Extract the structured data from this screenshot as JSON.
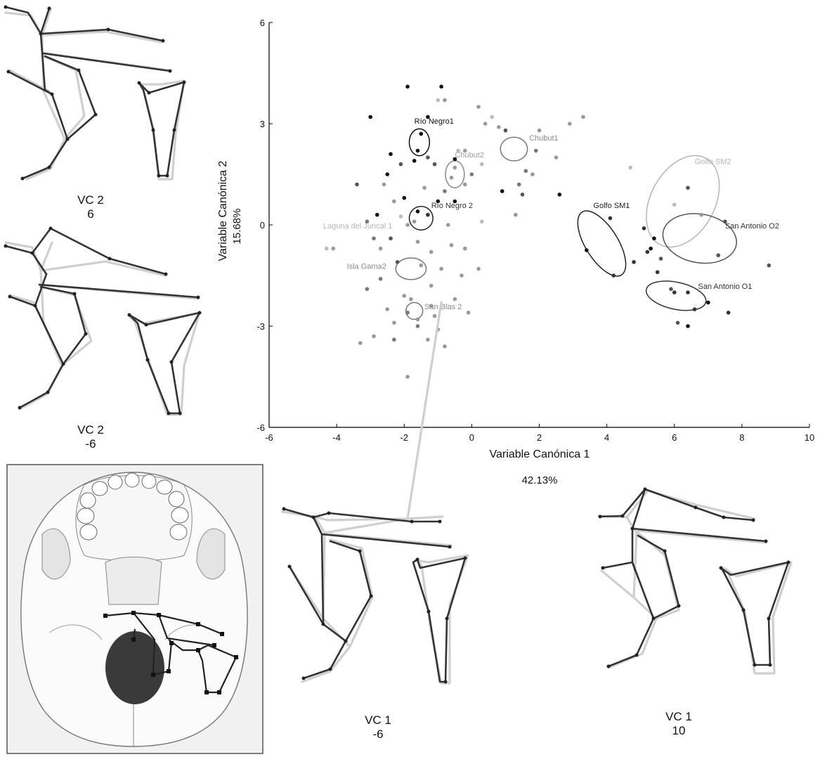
{
  "chart_data": {
    "type": "scatter",
    "xlabel": "Variable Canónica 1",
    "xlabel_pct": "42.13%",
    "ylabel": "Variable Canónica 2",
    "ylabel_pct": "15.68%",
    "xlim": [
      -6,
      10
    ],
    "ylim": [
      -6,
      6
    ],
    "xticks": [
      "-6",
      "-4",
      "-2",
      "0",
      "2",
      "4",
      "6",
      "8",
      "10"
    ],
    "yticks": [
      "6",
      "3",
      "0",
      "-3",
      "-6"
    ],
    "group_labels": [
      {
        "name": "Río Negro1",
        "x": -1.7,
        "y": 3.0,
        "color": "#111111"
      },
      {
        "name": "Chubut2",
        "x": -0.5,
        "y": 2.0,
        "color": "#a0a0a0"
      },
      {
        "name": "Chubut1",
        "x": 1.7,
        "y": 2.5,
        "color": "#8a8a8a"
      },
      {
        "name": "Golfo SM2",
        "x": 6.6,
        "y": 1.8,
        "color": "#b5b5b5"
      },
      {
        "name": "Río Negro 2",
        "x": -1.2,
        "y": 0.5,
        "color": "#333333"
      },
      {
        "name": "Golfo SM1",
        "x": 3.6,
        "y": 0.5,
        "color": "#222222"
      },
      {
        "name": "San Antonio O2",
        "x": 7.5,
        "y": -0.1,
        "color": "#333333"
      },
      {
        "name": "Laguna del Juncal 1",
        "x": -4.4,
        "y": -0.1,
        "color": "#b5b5b5"
      },
      {
        "name": "Isla Gama2",
        "x": -3.7,
        "y": -1.3,
        "color": "#8a8a8a"
      },
      {
        "name": "San Antonio O1",
        "x": 6.7,
        "y": -1.9,
        "color": "#333333"
      },
      {
        "name": "San Blas 2",
        "x": -1.4,
        "y": -2.5,
        "color": "#8a8a8a"
      }
    ],
    "ellipses": [
      {
        "cx": -1.55,
        "cy": 2.45,
        "rx": 0.3,
        "ry": 0.4,
        "rot": 0,
        "color": "#111111"
      },
      {
        "cx": -0.5,
        "cy": 1.5,
        "rx": 0.28,
        "ry": 0.4,
        "rot": 0,
        "color": "#8a8a8a"
      },
      {
        "cx": 1.25,
        "cy": 2.25,
        "rx": 0.4,
        "ry": 0.35,
        "rot": 0,
        "color": "#777777"
      },
      {
        "cx": -1.5,
        "cy": 0.2,
        "rx": 0.35,
        "ry": 0.35,
        "rot": 0,
        "color": "#222222"
      },
      {
        "cx": -1.8,
        "cy": -1.3,
        "rx": 0.45,
        "ry": 0.32,
        "rot": 0,
        "color": "#777777"
      },
      {
        "cx": -1.7,
        "cy": -2.55,
        "rx": 0.25,
        "ry": 0.25,
        "rot": 0,
        "color": "#777777"
      },
      {
        "cx": 3.85,
        "cy": -0.55,
        "rx": 0.48,
        "ry": 1.1,
        "rot": -32,
        "color": "#222222"
      },
      {
        "cx": 6.25,
        "cy": 0.7,
        "rx": 0.95,
        "ry": 1.45,
        "rot": 28,
        "color": "#b5b5b5"
      },
      {
        "cx": 6.75,
        "cy": -0.4,
        "rx": 1.1,
        "ry": 0.72,
        "rot": 10,
        "color": "#555555"
      },
      {
        "cx": 6.05,
        "cy": -2.1,
        "rx": 0.9,
        "ry": 0.4,
        "rot": 12,
        "color": "#333333"
      }
    ],
    "points": [
      {
        "x": -1.9,
        "y": 4.1,
        "c": "#111111"
      },
      {
        "x": -0.9,
        "y": 4.1,
        "c": "#111111"
      },
      {
        "x": -1.0,
        "y": 3.7,
        "c": "#bbbbbb"
      },
      {
        "x": -0.8,
        "y": 3.7,
        "c": "#999999"
      },
      {
        "x": -3.0,
        "y": 3.2,
        "c": "#111111"
      },
      {
        "x": -1.3,
        "y": 3.2,
        "c": "#111111"
      },
      {
        "x": -1.5,
        "y": 2.7,
        "c": "#111111"
      },
      {
        "x": -1.6,
        "y": 2.2,
        "c": "#111111"
      },
      {
        "x": -1.3,
        "y": 2.0,
        "c": "#555555"
      },
      {
        "x": -1.7,
        "y": 1.9,
        "c": "#111111"
      },
      {
        "x": -2.4,
        "y": 2.1,
        "c": "#111111"
      },
      {
        "x": -2.5,
        "y": 1.5,
        "c": "#111111"
      },
      {
        "x": -2.1,
        "y": 1.8,
        "c": "#555555"
      },
      {
        "x": -1.1,
        "y": 1.8,
        "c": "#555555"
      },
      {
        "x": -0.5,
        "y": 1.95,
        "c": "#111111"
      },
      {
        "x": -0.5,
        "y": 1.7,
        "c": "#999999"
      },
      {
        "x": -0.6,
        "y": 1.4,
        "c": "#999999"
      },
      {
        "x": -0.4,
        "y": 2.2,
        "c": "#bbbbbb"
      },
      {
        "x": -0.2,
        "y": 2.2,
        "c": "#999999"
      },
      {
        "x": 0.0,
        "y": 1.5,
        "c": "#777777"
      },
      {
        "x": -0.2,
        "y": 1.2,
        "c": "#999999"
      },
      {
        "x": 0.3,
        "y": 1.8,
        "c": "#bbbbbb"
      },
      {
        "x": 0.4,
        "y": 3.0,
        "c": "#999999"
      },
      {
        "x": 0.2,
        "y": 3.5,
        "c": "#999999"
      },
      {
        "x": 0.6,
        "y": 3.2,
        "c": "#bbbbbb"
      },
      {
        "x": 0.8,
        "y": 2.9,
        "c": "#999999"
      },
      {
        "x": 1.0,
        "y": 2.8,
        "c": "#555555"
      },
      {
        "x": 1.6,
        "y": 1.6,
        "c": "#777777"
      },
      {
        "x": 1.8,
        "y": 1.5,
        "c": "#999999"
      },
      {
        "x": 1.9,
        "y": 2.2,
        "c": "#777777"
      },
      {
        "x": 2.0,
        "y": 2.8,
        "c": "#999999"
      },
      {
        "x": 2.5,
        "y": 2.0,
        "c": "#999999"
      },
      {
        "x": 2.9,
        "y": 3.0,
        "c": "#999999"
      },
      {
        "x": 3.3,
        "y": 3.2,
        "c": "#999999"
      },
      {
        "x": 1.4,
        "y": 1.2,
        "c": "#777777"
      },
      {
        "x": 1.5,
        "y": 0.9,
        "c": "#555555"
      },
      {
        "x": 0.9,
        "y": 1.0,
        "c": "#111111"
      },
      {
        "x": 2.6,
        "y": 0.9,
        "c": "#111111"
      },
      {
        "x": 1.3,
        "y": 0.3,
        "c": "#999999"
      },
      {
        "x": -0.8,
        "y": 1.0,
        "c": "#777777"
      },
      {
        "x": -1.4,
        "y": 1.1,
        "c": "#999999"
      },
      {
        "x": -2.0,
        "y": 0.8,
        "c": "#111111"
      },
      {
        "x": -2.3,
        "y": 0.7,
        "c": "#999999"
      },
      {
        "x": -2.6,
        "y": 1.2,
        "c": "#999999"
      },
      {
        "x": -3.4,
        "y": 1.2,
        "c": "#555555"
      },
      {
        "x": -1.0,
        "y": 0.7,
        "c": "#111111"
      },
      {
        "x": -0.5,
        "y": 0.7,
        "c": "#111111"
      },
      {
        "x": 0.3,
        "y": 0.1,
        "c": "#bbbbbb"
      },
      {
        "x": -1.6,
        "y": 0.4,
        "c": "#111111"
      },
      {
        "x": -1.3,
        "y": 0.3,
        "c": "#333333"
      },
      {
        "x": -1.7,
        "y": 0.1,
        "c": "#999999"
      },
      {
        "x": -2.8,
        "y": 0.3,
        "c": "#111111"
      },
      {
        "x": -3.1,
        "y": 0.1,
        "c": "#777777"
      },
      {
        "x": -2.1,
        "y": 0.25,
        "c": "#bbbbbb"
      },
      {
        "x": -1.9,
        "y": 0.0,
        "c": "#999999"
      },
      {
        "x": -0.7,
        "y": 0.0,
        "c": "#999999"
      },
      {
        "x": -2.9,
        "y": -0.4,
        "c": "#777777"
      },
      {
        "x": -2.4,
        "y": -0.4,
        "c": "#555555"
      },
      {
        "x": -4.3,
        "y": -0.7,
        "c": "#bbbbbb"
      },
      {
        "x": -4.1,
        "y": -0.7,
        "c": "#999999"
      },
      {
        "x": -2.7,
        "y": -0.7,
        "c": "#999999"
      },
      {
        "x": -1.6,
        "y": -0.5,
        "c": "#999999"
      },
      {
        "x": -1.2,
        "y": -0.8,
        "c": "#999999"
      },
      {
        "x": -0.6,
        "y": -0.6,
        "c": "#999999"
      },
      {
        "x": -0.2,
        "y": -0.7,
        "c": "#999999"
      },
      {
        "x": -2.2,
        "y": -1.1,
        "c": "#555555"
      },
      {
        "x": -1.5,
        "y": -1.2,
        "c": "#999999"
      },
      {
        "x": -0.9,
        "y": -1.3,
        "c": "#999999"
      },
      {
        "x": -0.3,
        "y": -1.5,
        "c": "#999999"
      },
      {
        "x": 0.2,
        "y": -1.3,
        "c": "#999999"
      },
      {
        "x": -2.7,
        "y": -1.6,
        "c": "#777777"
      },
      {
        "x": -1.2,
        "y": -1.8,
        "c": "#999999"
      },
      {
        "x": -3.1,
        "y": -1.9,
        "c": "#777777"
      },
      {
        "x": -2.0,
        "y": -2.1,
        "c": "#999999"
      },
      {
        "x": -1.8,
        "y": -2.2,
        "c": "#999999"
      },
      {
        "x": -1.2,
        "y": -2.4,
        "c": "#999999"
      },
      {
        "x": -0.5,
        "y": -2.2,
        "c": "#999999"
      },
      {
        "x": -0.1,
        "y": -2.6,
        "c": "#999999"
      },
      {
        "x": -2.5,
        "y": -2.5,
        "c": "#999999"
      },
      {
        "x": -1.9,
        "y": -2.6,
        "c": "#777777"
      },
      {
        "x": -1.6,
        "y": -2.8,
        "c": "#999999"
      },
      {
        "x": -1.1,
        "y": -2.7,
        "c": "#999999"
      },
      {
        "x": -2.3,
        "y": -2.9,
        "c": "#999999"
      },
      {
        "x": -1.6,
        "y": -3.0,
        "c": "#777777"
      },
      {
        "x": -1.0,
        "y": -3.1,
        "c": "#999999"
      },
      {
        "x": -2.9,
        "y": -3.3,
        "c": "#999999"
      },
      {
        "x": -2.3,
        "y": -3.4,
        "c": "#777777"
      },
      {
        "x": -1.3,
        "y": -3.4,
        "c": "#999999"
      },
      {
        "x": -0.8,
        "y": -3.6,
        "c": "#999999"
      },
      {
        "x": -3.3,
        "y": -3.5,
        "c": "#999999"
      },
      {
        "x": -1.9,
        "y": -4.5,
        "c": "#999999"
      },
      {
        "x": 4.7,
        "y": 1.7,
        "c": "#bbbbbb"
      },
      {
        "x": 6.4,
        "y": 1.1,
        "c": "#555555"
      },
      {
        "x": 6.0,
        "y": 0.6,
        "c": "#bbbbbb"
      },
      {
        "x": 6.8,
        "y": 0.3,
        "c": "#999999"
      },
      {
        "x": 7.5,
        "y": 0.1,
        "c": "#555555"
      },
      {
        "x": 5.1,
        "y": -0.1,
        "c": "#333333"
      },
      {
        "x": 5.4,
        "y": -0.4,
        "c": "#111111"
      },
      {
        "x": 5.2,
        "y": -0.8,
        "c": "#333333"
      },
      {
        "x": 5.3,
        "y": -0.7,
        "c": "#111111"
      },
      {
        "x": 5.6,
        "y": -1.0,
        "c": "#555555"
      },
      {
        "x": 4.8,
        "y": -1.1,
        "c": "#333333"
      },
      {
        "x": 7.3,
        "y": -0.9,
        "c": "#555555"
      },
      {
        "x": 8.8,
        "y": -1.2,
        "c": "#555555"
      },
      {
        "x": 5.5,
        "y": -1.4,
        "c": "#333333"
      },
      {
        "x": 3.4,
        "y": -0.75,
        "c": "#111111"
      },
      {
        "x": 4.2,
        "y": -1.5,
        "c": "#333333"
      },
      {
        "x": 4.1,
        "y": 0.2,
        "c": "#333333"
      },
      {
        "x": 5.9,
        "y": -1.9,
        "c": "#555555"
      },
      {
        "x": 6.0,
        "y": -2.0,
        "c": "#333333"
      },
      {
        "x": 6.4,
        "y": -2.0,
        "c": "#333333"
      },
      {
        "x": 7.0,
        "y": -2.3,
        "c": "#111111"
      },
      {
        "x": 6.6,
        "y": -2.5,
        "c": "#333333"
      },
      {
        "x": 7.6,
        "y": -2.6,
        "c": "#333333"
      },
      {
        "x": 6.1,
        "y": -2.9,
        "c": "#555555"
      },
      {
        "x": 6.4,
        "y": -3.0,
        "c": "#111111"
      }
    ]
  },
  "shape_panels": [
    {
      "label_line1": "VC 2",
      "label_line2": "6"
    },
    {
      "label_line1": "VC 2",
      "label_line2": "-6"
    },
    {
      "label_line1": "VC 1",
      "label_line2": "-6"
    },
    {
      "label_line1": "VC 1",
      "label_line2": "10"
    }
  ],
  "skull_panel": {
    "icon": "skull-base-illustration-icon"
  },
  "colors": {
    "axis": "#000000",
    "dark": "#222222",
    "mid": "#777777",
    "light": "#b5b5b5",
    "shape_reference": "#cfcfcf",
    "shape_target": "#333333"
  }
}
